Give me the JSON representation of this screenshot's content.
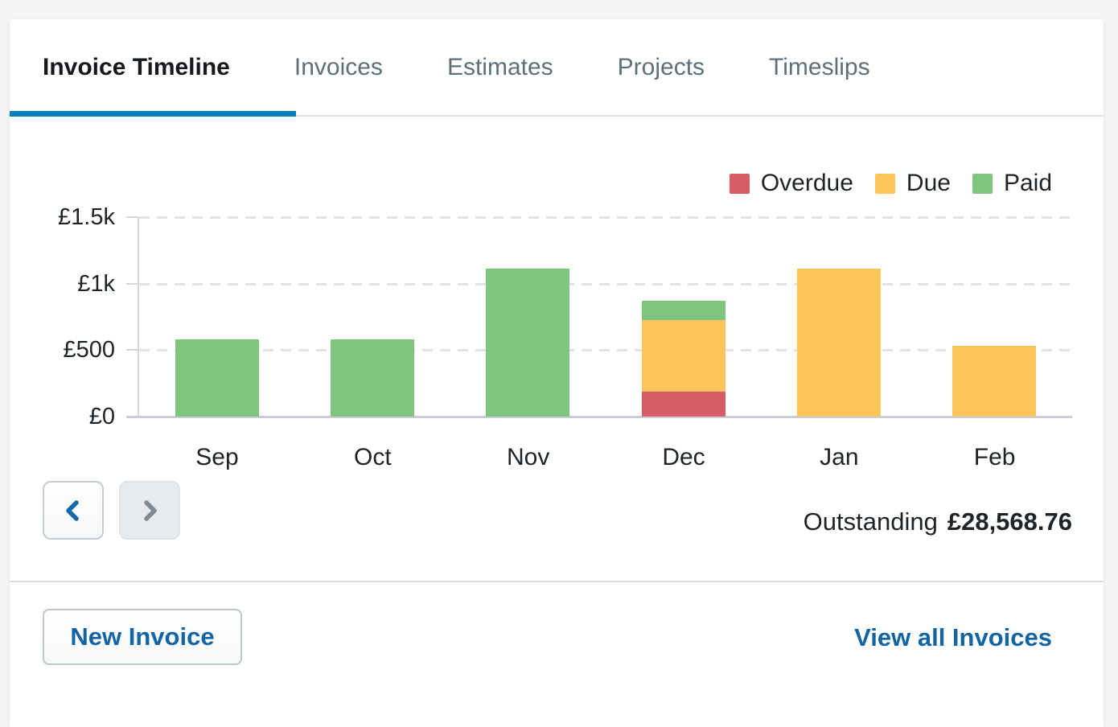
{
  "tabs": {
    "items": [
      {
        "label": "Invoice Timeline",
        "active": true
      },
      {
        "label": "Invoices",
        "active": false
      },
      {
        "label": "Estimates",
        "active": false
      },
      {
        "label": "Projects",
        "active": false
      },
      {
        "label": "Timeslips",
        "active": false
      }
    ]
  },
  "chart_data": {
    "type": "bar",
    "stacked": true,
    "title": "Invoice Timeline",
    "categories": [
      "Sep",
      "Oct",
      "Nov",
      "Dec",
      "Jan",
      "Feb"
    ],
    "series": [
      {
        "name": "Overdue",
        "color": "#d85c66",
        "values": [
          0,
          0,
          0,
          185,
          0,
          0
        ]
      },
      {
        "name": "Due",
        "color": "#fdc45b",
        "values": [
          0,
          0,
          0,
          540,
          1115,
          530
        ]
      },
      {
        "name": "Paid",
        "color": "#7fc57f",
        "values": [
          580,
          580,
          1115,
          145,
          0,
          0
        ]
      }
    ],
    "currency": "£",
    "ylim": [
      0,
      1500
    ],
    "yticks": [
      {
        "value": 0,
        "label": "£0"
      },
      {
        "value": 500,
        "label": "£500"
      },
      {
        "value": 1000,
        "label": "£1k"
      },
      {
        "value": 1500,
        "label": "£1.5k"
      }
    ],
    "grid": "dashed-horizontal",
    "legend_position": "top-right"
  },
  "nav": {
    "prev": {
      "icon": "chevron-left",
      "enabled": true,
      "chevron_color": "#1568a9"
    },
    "next": {
      "icon": "chevron-right",
      "enabled": false,
      "chevron_color": "#7e8a92"
    }
  },
  "outstanding": {
    "label": "Outstanding",
    "amount": "£28,568.76"
  },
  "footer": {
    "new_invoice_label": "New Invoice",
    "view_all_label": "View all Invoices"
  },
  "colors": {
    "accent_blue": "#0d7dc1",
    "link_blue": "#1264a4",
    "overdue_red": "#d85c66",
    "due_orange": "#fdc45b",
    "paid_green": "#7fc57f"
  }
}
